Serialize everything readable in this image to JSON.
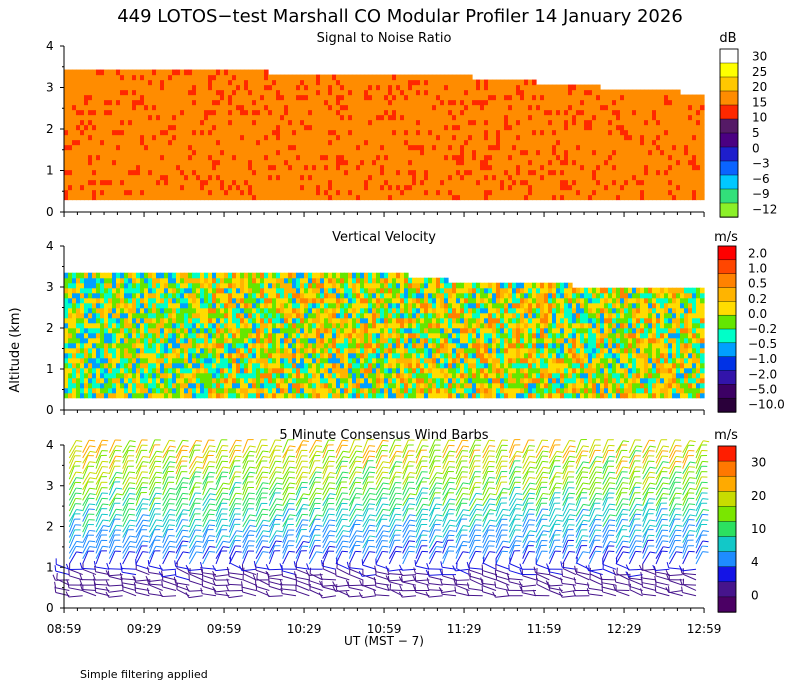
{
  "figure": {
    "title": "449 LOTOS−test Marshall CO Modular Profiler 14 January 2026",
    "y_axis_label": "Altitude (km)",
    "x_axis_label": "UT  (MST − 7)",
    "footnote": "Simple filtering applied",
    "time_ticks": [
      "08:59",
      "09:29",
      "09:59",
      "10:29",
      "10:59",
      "11:29",
      "11:59",
      "12:29",
      "12:59"
    ],
    "altitude_ticks": [
      "0",
      "1",
      "2",
      "3",
      "4"
    ]
  },
  "chart_data": [
    {
      "type": "heatmap",
      "title": "Signal to Noise Ratio",
      "xlabel": "UT  (MST − 7)",
      "ylabel": "Altitude (km)",
      "x_range_hours": [
        8.983,
        12.983
      ],
      "ylim": [
        0,
        4
      ],
      "units": "dB",
      "colorbar": {
        "labels": [
          "30",
          "25",
          "20",
          "15",
          "10",
          "5",
          "0",
          "−3",
          "−6",
          "−9",
          "−12"
        ],
        "colors": [
          "#ffffff",
          "#ffff00",
          "#ffc800",
          "#ff8c00",
          "#ff2800",
          "#551a66",
          "#4b0082",
          "#1e1ecc",
          "#0a64ff",
          "#00c8ff",
          "#32e07a",
          "#8cf028"
        ]
      },
      "data_top_km": [
        3.35,
        3.35,
        3.3,
        3.2,
        3.05,
        2.9,
        2.8
      ],
      "data_top_times": [
        "08:59",
        "09:29",
        "10:29",
        "11:29",
        "11:59",
        "12:29",
        "12:59"
      ],
      "data_bottom_km": 0.3
    },
    {
      "type": "heatmap",
      "title": "Vertical Velocity",
      "xlabel": "UT  (MST − 7)",
      "ylabel": "Altitude (km)",
      "x_range_hours": [
        8.983,
        12.983
      ],
      "ylim": [
        0,
        4
      ],
      "units": "m/s",
      "colorbar": {
        "labels": [
          "2.0",
          "1.0",
          "0.5",
          "0.2",
          "0.0",
          "−0.2",
          "−0.5",
          "−1.0",
          "−2.0",
          "−5.0",
          "−10.0"
        ],
        "colors": [
          "#ff0000",
          "#ff4600",
          "#ff8200",
          "#ffb400",
          "#ffdc00",
          "#64e600",
          "#00ffc8",
          "#00a0ff",
          "#0032e6",
          "#3214aa",
          "#3c0064",
          "#2a003a"
        ]
      },
      "data_top_km": [
        3.3,
        3.3,
        3.3,
        3.05,
        2.95,
        2.9
      ],
      "data_top_times": [
        "08:59",
        "09:59",
        "10:59",
        "11:29",
        "12:29",
        "12:59"
      ],
      "data_bottom_km": 0.3
    },
    {
      "type": "scatter",
      "title": "5 Minute Consensus Wind Barbs",
      "xlabel": "UT  (MST − 7)",
      "ylabel": "Altitude (km)",
      "x_range_hours": [
        8.983,
        12.983
      ],
      "ylim": [
        0,
        4
      ],
      "units": "m/s",
      "colorbar": {
        "labels": [
          "30",
          "20",
          "10",
          "4",
          "0"
        ],
        "colors": [
          "#ff1e00",
          "#ff7800",
          "#ffaa00",
          "#c8dc00",
          "#7ae600",
          "#2ce060",
          "#12c8c8",
          "#1e8cff",
          "#1414e6",
          "#46148c",
          "#4b0064"
        ]
      },
      "barb_interval_minutes": 5,
      "speed_profile": {
        "altitudes_km": [
          0.3,
          0.8,
          1.2,
          2.0,
          3.0,
          4.0
        ],
        "speeds_ms": [
          3,
          4,
          8,
          12,
          18,
          22
        ]
      }
    }
  ]
}
